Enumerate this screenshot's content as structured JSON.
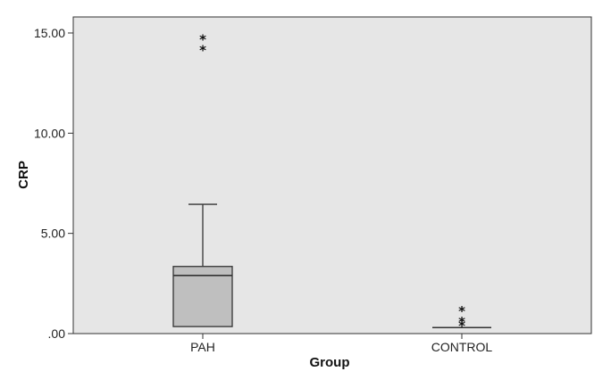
{
  "chart_data": {
    "type": "boxplot",
    "xlabel": "Group",
    "ylabel": "CRP",
    "ylim": [
      0,
      15.8
    ],
    "yticks": [
      0,
      5,
      10,
      15
    ],
    "ytick_labels": [
      ".00",
      "5.00",
      "10.00",
      "15.00"
    ],
    "categories": [
      "PAH",
      "CONTROL"
    ],
    "boxes": [
      {
        "category": "PAH",
        "min": 0.35,
        "q1": 0.35,
        "median": 2.9,
        "q3": 3.35,
        "max": 6.45,
        "outliers": [
          14.3,
          14.85
        ]
      },
      {
        "category": "CONTROL",
        "min": 0.3,
        "q1": 0.3,
        "median": 0.3,
        "q3": 0.3,
        "max": 0.3,
        "outliers": [
          0.55,
          0.75,
          1.3
        ]
      }
    ],
    "outlier_marker": "*",
    "plot_background": "#e6e6e6",
    "box_fill": "#bfbfbf",
    "line_color": "#333333",
    "grid": false
  }
}
